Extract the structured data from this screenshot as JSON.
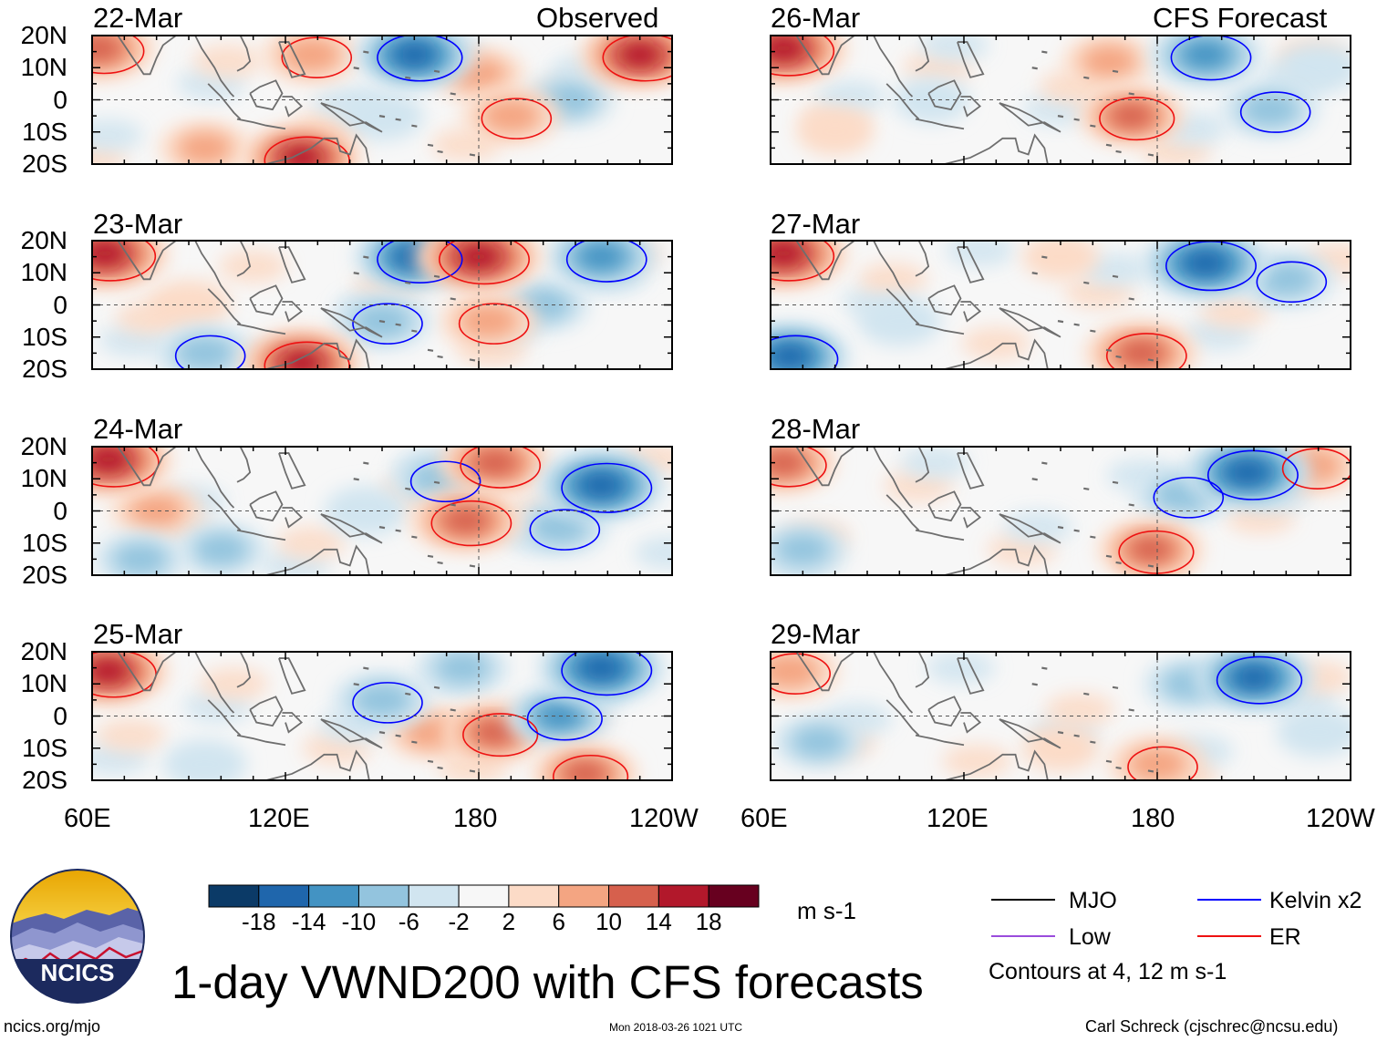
{
  "header": {
    "left_title": "Observed",
    "right_title": "CFS Forecast"
  },
  "lat_labels": [
    "20N",
    "10N",
    "0",
    "10S",
    "20S"
  ],
  "lon_labels": [
    "60E",
    "120E",
    "180",
    "120W"
  ],
  "panels": [
    {
      "date": "22-Mar",
      "type": "observed"
    },
    {
      "date": "23-Mar",
      "type": "observed"
    },
    {
      "date": "24-Mar",
      "type": "observed"
    },
    {
      "date": "25-Mar",
      "type": "observed"
    },
    {
      "date": "26-Mar",
      "type": "forecast"
    },
    {
      "date": "27-Mar",
      "type": "forecast"
    },
    {
      "date": "28-Mar",
      "type": "forecast"
    },
    {
      "date": "29-Mar",
      "type": "forecast"
    }
  ],
  "colorbar": {
    "ticks": [
      "-18",
      "-14",
      "-10",
      "-6",
      "-2",
      "2",
      "6",
      "10",
      "14",
      "18"
    ],
    "unit": "m s-1",
    "colors": [
      "#0b3a67",
      "#1f66ac",
      "#4393c3",
      "#93c4de",
      "#d1e5f0",
      "#f7f7f7",
      "#fcdbc7",
      "#f4a582",
      "#d6604d",
      "#b2182b",
      "#67001f"
    ]
  },
  "legend": {
    "items": [
      {
        "label": "MJO",
        "color": "#000000"
      },
      {
        "label": "Kelvin x2",
        "color": "#0000ff"
      },
      {
        "label": "Low",
        "color": "#9a4cdc"
      },
      {
        "label": "ER",
        "color": "#ee1111"
      }
    ],
    "note": "Contours at 4, 12 m s-1"
  },
  "logo": {
    "text": "NCICS"
  },
  "title": "1-day VWND200 with CFS forecasts",
  "footer": {
    "url": "ncics.org/mjo",
    "timestamp": "Mon 2018-03-26 1021 UTC",
    "author": "Carl Schreck (cjschrec@ncsu.edu)"
  },
  "chart_data": {
    "type": "heatmap",
    "variable": "200-hPa meridional wind (VWND200), 1-day mean",
    "units": "m s-1",
    "x_range": [
      "60E",
      "120W"
    ],
    "y_range": [
      "20S",
      "20N"
    ],
    "contour_levels": [
      4,
      12
    ],
    "color_levels": [
      -18,
      -14,
      -10,
      -6,
      -2,
      2,
      6,
      10,
      14,
      18
    ],
    "features": [
      {
        "panel": "22-Mar",
        "lon": 62,
        "lat": 16,
        "value": 14
      },
      {
        "panel": "22-Mar",
        "lon": 128,
        "lat": 14,
        "value": 10
      },
      {
        "panel": "22-Mar",
        "lon": 160,
        "lat": 14,
        "value": -16
      },
      {
        "panel": "22-Mar",
        "lon": 180,
        "lat": 8,
        "value": 8
      },
      {
        "panel": "22-Mar",
        "lon": 190,
        "lat": -5,
        "value": 10
      },
      {
        "panel": "22-Mar",
        "lon": 125,
        "lat": -18,
        "value": 16
      },
      {
        "panel": "22-Mar",
        "lon": 95,
        "lat": -15,
        "value": 8
      },
      {
        "panel": "22-Mar",
        "lon": 230,
        "lat": 14,
        "value": 16
      },
      {
        "panel": "22-Mar",
        "lon": 150,
        "lat": -5,
        "value": -6
      },
      {
        "panel": "22-Mar",
        "lon": 208,
        "lat": 0,
        "value": -8
      },
      {
        "panel": "23-Mar",
        "lon": 64,
        "lat": 16,
        "value": 18
      },
      {
        "panel": "23-Mar",
        "lon": 90,
        "lat": 0,
        "value": 6
      },
      {
        "panel": "23-Mar",
        "lon": 160,
        "lat": 15,
        "value": -16
      },
      {
        "panel": "23-Mar",
        "lon": 180,
        "lat": 15,
        "value": 18
      },
      {
        "panel": "23-Mar",
        "lon": 183,
        "lat": -5,
        "value": 10
      },
      {
        "panel": "23-Mar",
        "lon": 150,
        "lat": -5,
        "value": -10
      },
      {
        "panel": "23-Mar",
        "lon": 125,
        "lat": -18,
        "value": 16
      },
      {
        "panel": "23-Mar",
        "lon": 218,
        "lat": 15,
        "value": -14
      },
      {
        "panel": "23-Mar",
        "lon": 200,
        "lat": 0,
        "value": -8
      },
      {
        "panel": "23-Mar",
        "lon": 95,
        "lat": -15,
        "value": -10
      },
      {
        "panel": "24-Mar",
        "lon": 65,
        "lat": 16,
        "value": 18
      },
      {
        "panel": "24-Mar",
        "lon": 80,
        "lat": 0,
        "value": 8
      },
      {
        "panel": "24-Mar",
        "lon": 185,
        "lat": 15,
        "value": 14
      },
      {
        "panel": "24-Mar",
        "lon": 176,
        "lat": -3,
        "value": 14
      },
      {
        "panel": "24-Mar",
        "lon": 218,
        "lat": 8,
        "value": -18
      },
      {
        "panel": "24-Mar",
        "lon": 168,
        "lat": 10,
        "value": -10
      },
      {
        "panel": "24-Mar",
        "lon": 205,
        "lat": -5,
        "value": -10
      },
      {
        "panel": "24-Mar",
        "lon": 100,
        "lat": -12,
        "value": -8
      },
      {
        "panel": "24-Mar",
        "lon": 145,
        "lat": 0,
        "value": -6
      },
      {
        "panel": "24-Mar",
        "lon": 75,
        "lat": -15,
        "value": -8
      },
      {
        "panel": "25-Mar",
        "lon": 65,
        "lat": 14,
        "value": 16
      },
      {
        "panel": "25-Mar",
        "lon": 185,
        "lat": -5,
        "value": 12
      },
      {
        "panel": "25-Mar",
        "lon": 165,
        "lat": -5,
        "value": 8
      },
      {
        "panel": "25-Mar",
        "lon": 218,
        "lat": 15,
        "value": -18
      },
      {
        "panel": "25-Mar",
        "lon": 205,
        "lat": 0,
        "value": -12
      },
      {
        "panel": "25-Mar",
        "lon": 150,
        "lat": 5,
        "value": -10
      },
      {
        "panel": "25-Mar",
        "lon": 175,
        "lat": 15,
        "value": -8
      },
      {
        "panel": "25-Mar",
        "lon": 95,
        "lat": -15,
        "value": -6
      },
      {
        "panel": "25-Mar",
        "lon": 213,
        "lat": -18,
        "value": 12
      },
      {
        "panel": "26-Mar",
        "lon": 64,
        "lat": 16,
        "value": 18
      },
      {
        "panel": "26-Mar",
        "lon": 172,
        "lat": -5,
        "value": 12
      },
      {
        "panel": "26-Mar",
        "lon": 165,
        "lat": 12,
        "value": 8
      },
      {
        "panel": "26-Mar",
        "lon": 195,
        "lat": 14,
        "value": -14
      },
      {
        "panel": "26-Mar",
        "lon": 215,
        "lat": -3,
        "value": -10
      },
      {
        "panel": "26-Mar",
        "lon": 230,
        "lat": 10,
        "value": -6
      },
      {
        "panel": "26-Mar",
        "lon": 110,
        "lat": 0,
        "value": -4
      },
      {
        "panel": "26-Mar",
        "lon": 80,
        "lat": -10,
        "value": 4
      },
      {
        "panel": "27-Mar",
        "lon": 64,
        "lat": 16,
        "value": 18
      },
      {
        "panel": "27-Mar",
        "lon": 195,
        "lat": 13,
        "value": -18
      },
      {
        "panel": "27-Mar",
        "lon": 220,
        "lat": 8,
        "value": -10
      },
      {
        "panel": "27-Mar",
        "lon": 175,
        "lat": -15,
        "value": 14
      },
      {
        "panel": "27-Mar",
        "lon": 66,
        "lat": -16,
        "value": -16
      },
      {
        "panel": "27-Mar",
        "lon": 100,
        "lat": -5,
        "value": -6
      },
      {
        "panel": "27-Mar",
        "lon": 150,
        "lat": 15,
        "value": 4
      },
      {
        "panel": "28-Mar",
        "lon": 64,
        "lat": 15,
        "value": 12
      },
      {
        "panel": "28-Mar",
        "lon": 208,
        "lat": 12,
        "value": -18
      },
      {
        "panel": "28-Mar",
        "lon": 188,
        "lat": 5,
        "value": -10
      },
      {
        "panel": "28-Mar",
        "lon": 178,
        "lat": -12,
        "value": 12
      },
      {
        "panel": "28-Mar",
        "lon": 70,
        "lat": -12,
        "value": -8
      },
      {
        "panel": "28-Mar",
        "lon": 228,
        "lat": 14,
        "value": 10
      },
      {
        "panel": "29-Mar",
        "lon": 66,
        "lat": 14,
        "value": 10
      },
      {
        "panel": "29-Mar",
        "lon": 210,
        "lat": 12,
        "value": -16
      },
      {
        "panel": "29-Mar",
        "lon": 190,
        "lat": 10,
        "value": -8
      },
      {
        "panel": "29-Mar",
        "lon": 180,
        "lat": -15,
        "value": 10
      },
      {
        "panel": "29-Mar",
        "lon": 75,
        "lat": -8,
        "value": -8
      },
      {
        "panel": "29-Mar",
        "lon": 150,
        "lat": -10,
        "value": 4
      },
      {
        "panel": "29-Mar",
        "lon": 230,
        "lat": -5,
        "value": -6
      }
    ]
  }
}
